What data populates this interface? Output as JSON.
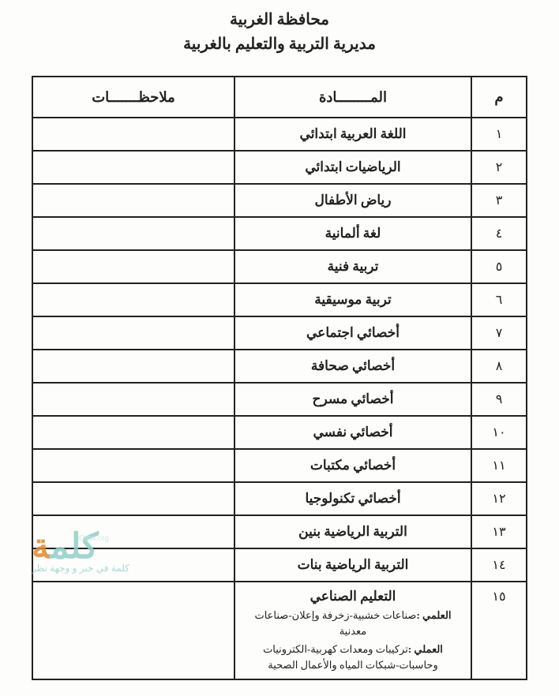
{
  "header": {
    "line1": "محافظة الغربية",
    "line2": "مديرية التربية والتعليم بالغربية"
  },
  "columns": {
    "num": "م",
    "subject": "المــــــــادة",
    "notes": "ملاحظـــــــات"
  },
  "rows": [
    {
      "n": "١",
      "subject": "اللغة العربية ابتدائي",
      "notes": ""
    },
    {
      "n": "٢",
      "subject": "الرياضيات ابتدائي",
      "notes": ""
    },
    {
      "n": "٣",
      "subject": "رياض الأطفال",
      "notes": ""
    },
    {
      "n": "٤",
      "subject": "لغة ألمانية",
      "notes": ""
    },
    {
      "n": "٥",
      "subject": "تربية فنية",
      "notes": ""
    },
    {
      "n": "٦",
      "subject": "تربية موسيقية",
      "notes": ""
    },
    {
      "n": "٧",
      "subject": "أخصائي اجتماعي",
      "notes": ""
    },
    {
      "n": "٨",
      "subject": "أخصائي صحافة",
      "notes": ""
    },
    {
      "n": "٩",
      "subject": "أخصائي مسرح",
      "notes": ""
    },
    {
      "n": "١٠",
      "subject": "أخصائي نفسي",
      "notes": ""
    },
    {
      "n": "١١",
      "subject": "أخصائي مكتبات",
      "notes": ""
    },
    {
      "n": "١٢",
      "subject": "أخصائي تكنولوجيا",
      "notes": ""
    },
    {
      "n": "١٣",
      "subject": "التربية الرياضية بنين",
      "notes": ""
    },
    {
      "n": "١٤",
      "subject": "التربية الرياضية بنات",
      "notes": ""
    }
  ],
  "row15": {
    "n": "١٥",
    "title": "التعليم الصناعي",
    "sci_label": "العلمي :",
    "sci_text": "صناعات خشبية-زخرفة وإعلان-صناعات معدنية",
    "prac_label": "العملي :",
    "prac_text": "تركيبات ومعدات كهربية-الكترونيات وحاسبات-شبكات المياه والأعمال الصحية",
    "notes": ""
  },
  "watermark": {
    "brand_main": "كلم",
    "brand_accent": "ة",
    "url": "Klma.org",
    "tagline": "كلمة في خبر و وجهة نظر"
  },
  "style": {
    "page_bg": "#fdfdfc",
    "border_color": "#222",
    "text_color": "#222",
    "watermark_teal": "#90cfc9",
    "watermark_orange": "#e08a2b"
  }
}
